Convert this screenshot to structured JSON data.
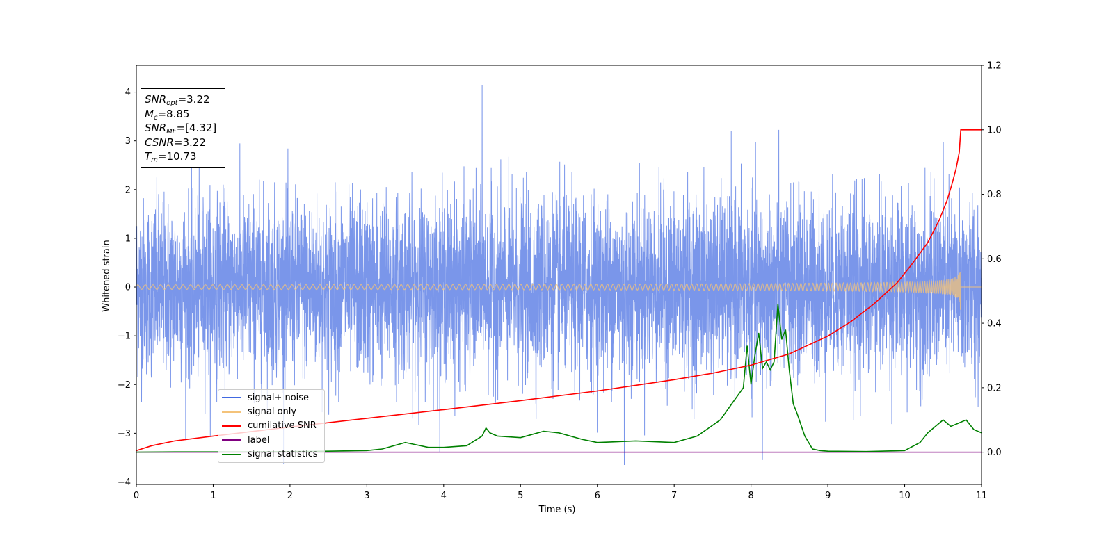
{
  "stats": {
    "snr_opt": {
      "sym": "SNR",
      "sub": "opt",
      "value": "=3.22"
    },
    "mc": {
      "sym": "M",
      "sub": "c",
      "value": "=8.85"
    },
    "snr_mf": {
      "sym": "SNR",
      "sub": "MF",
      "value": "=[4.32]"
    },
    "csnr": {
      "sym": "CSNR",
      "value": "=3.22"
    },
    "tm": {
      "sym": "T",
      "sub": "m",
      "value": "=10.73"
    }
  },
  "legend": [
    {
      "label": "signal+ noise",
      "color": "#4169e1"
    },
    {
      "label": "signal only",
      "color": "#f4c37a"
    },
    {
      "label": "cumilative SNR",
      "color": "#ff0000"
    },
    {
      "label": "label",
      "color": "#800080"
    },
    {
      "label": "signal statistics",
      "color": "#008000"
    }
  ],
  "chart_data": {
    "type": "line",
    "xlabel": "Time (s)",
    "ylabel": "Whitened strain",
    "xlim": [
      0,
      11
    ],
    "ylim": [
      -4.05,
      4.55
    ],
    "y2lim": [
      -0.1,
      1.2
    ],
    "x_ticks": [
      "0",
      "1",
      "2",
      "3",
      "4",
      "5",
      "6",
      "7",
      "8",
      "9",
      "10",
      "11"
    ],
    "y_ticks": [
      "−4",
      "−3",
      "−2",
      "−1",
      "0",
      "1",
      "2",
      "3",
      "4"
    ],
    "y2_ticks": [
      "0.0",
      "0.2",
      "0.4",
      "0.6",
      "0.8",
      "1.0",
      "1.2"
    ],
    "noise": {
      "std": 0.9,
      "extremes": [
        [
          4.5,
          4.15
        ],
        [
          6.35,
          -3.65
        ],
        [
          8.15,
          -3.55
        ]
      ]
    },
    "signal": {
      "t_merge": 10.73,
      "peak_amplitude": 0.5
    },
    "cumulative_snr": {
      "x": [
        0,
        0.2,
        0.5,
        1,
        2,
        3,
        4,
        5,
        6,
        7,
        7.5,
        8,
        8.5,
        9,
        9.3,
        9.6,
        9.9,
        10.1,
        10.3,
        10.45,
        10.55,
        10.62,
        10.67,
        10.71,
        10.73,
        10.75,
        11
      ],
      "y": [
        0.005,
        0.02,
        0.035,
        0.05,
        0.078,
        0.105,
        0.132,
        0.16,
        0.19,
        0.225,
        0.245,
        0.27,
        0.305,
        0.36,
        0.405,
        0.46,
        0.525,
        0.585,
        0.65,
        0.72,
        0.78,
        0.835,
        0.88,
        0.93,
        1.0,
        1.0,
        1.0
      ]
    },
    "label": {
      "x": [
        0,
        11
      ],
      "y": [
        0,
        0
      ]
    },
    "signal_statistics": {
      "x": [
        0,
        0.5,
        1,
        1.5,
        2,
        2.5,
        3,
        3.2,
        3.5,
        3.6,
        3.8,
        4,
        4.3,
        4.5,
        4.55,
        4.6,
        4.7,
        5,
        5.3,
        5.5,
        5.8,
        6,
        6.5,
        7,
        7.3,
        7.6,
        7.75,
        7.9,
        7.95,
        8,
        8.05,
        8.1,
        8.15,
        8.2,
        8.25,
        8.3,
        8.35,
        8.4,
        8.45,
        8.5,
        8.55,
        8.6,
        8.7,
        8.8,
        8.9,
        9,
        9.5,
        10,
        10.2,
        10.3,
        10.4,
        10.5,
        10.6,
        10.7,
        10.8,
        10.9,
        11
      ],
      "y": [
        0.0,
        0.001,
        0.001,
        0.001,
        0.002,
        0.003,
        0.005,
        0.01,
        0.03,
        0.025,
        0.015,
        0.015,
        0.02,
        0.05,
        0.075,
        0.06,
        0.05,
        0.045,
        0.065,
        0.06,
        0.04,
        0.03,
        0.035,
        0.03,
        0.05,
        0.1,
        0.15,
        0.2,
        0.33,
        0.21,
        0.3,
        0.37,
        0.26,
        0.28,
        0.255,
        0.28,
        0.46,
        0.35,
        0.38,
        0.25,
        0.15,
        0.12,
        0.05,
        0.01,
        0.005,
        0.003,
        0.002,
        0.005,
        0.03,
        0.06,
        0.08,
        0.1,
        0.08,
        0.09,
        0.1,
        0.07,
        0.06
      ]
    }
  }
}
